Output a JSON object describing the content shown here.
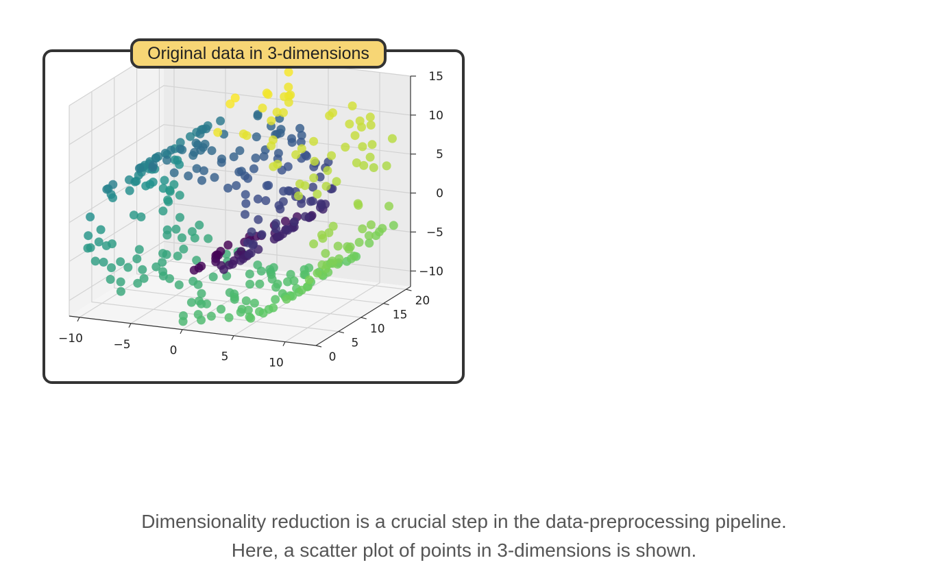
{
  "figure": {
    "title": "Original data in 3-dimensions"
  },
  "caption": {
    "line1": "Dimensionality reduction is a crucial step in the data-preprocessing pipeline.",
    "line2": "Here, a scatter plot of points in 3-dimensions is shown."
  },
  "chart_data": {
    "type": "scatter",
    "projection": "3d",
    "title": "Original data in 3-dimensions",
    "xlabel": "",
    "ylabel": "",
    "zlabel": "",
    "xlim": [
      -11,
      13
    ],
    "ylim": [
      0,
      21
    ],
    "zlim": [
      -12,
      15
    ],
    "x_ticks": [
      "−10",
      "−5",
      "0",
      "5",
      "10"
    ],
    "y_ticks": [
      "0",
      "5",
      "10",
      "15",
      "20"
    ],
    "z_ticks": [
      "−10",
      "−5",
      "0",
      "5",
      "10",
      "15"
    ],
    "grid": true,
    "colormap": "viridis",
    "color_by": "position along the spiral (t)",
    "colormap_stops": [
      "#440154",
      "#3b528b",
      "#21918c",
      "#5ec962",
      "#fde725"
    ],
    "point_count": 400,
    "points_sampled_from": "swiss roll: x = t·cos(t), z = t·sin(t), t ∈ [4.7, 14.1], y ∈ [0, 21]"
  }
}
